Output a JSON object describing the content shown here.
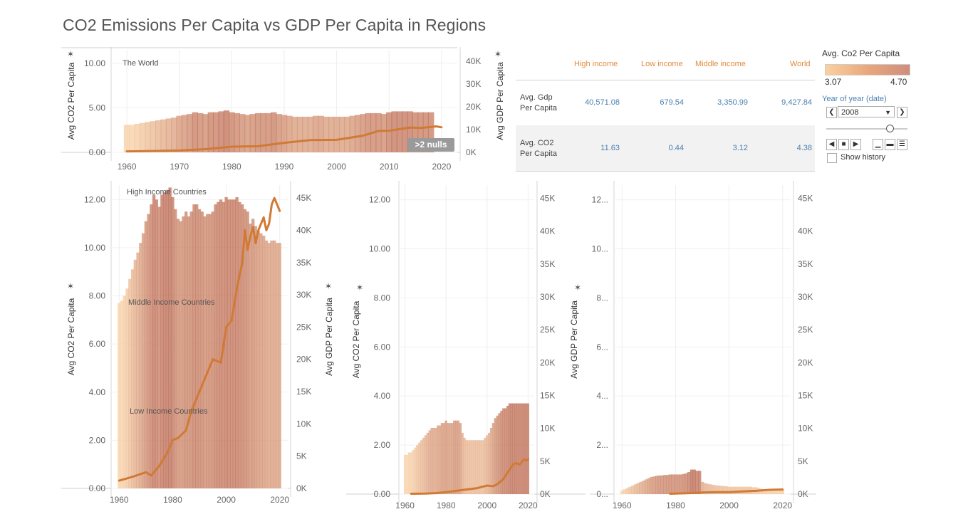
{
  "title": "CO2 Emissions Per Capita vs GDP Per Capita in Regions",
  "chart_data": [
    {
      "type": "bar",
      "region": "The World",
      "annotation": "The World",
      "x": [
        1960,
        1961,
        1962,
        1963,
        1964,
        1965,
        1966,
        1967,
        1968,
        1969,
        1970,
        1971,
        1972,
        1973,
        1974,
        1975,
        1976,
        1977,
        1978,
        1979,
        1980,
        1981,
        1982,
        1983,
        1984,
        1985,
        1986,
        1987,
        1988,
        1989,
        1990,
        1991,
        1992,
        1993,
        1994,
        1995,
        1996,
        1997,
        1998,
        1999,
        2000,
        2001,
        2002,
        2003,
        2004,
        2005,
        2006,
        2007,
        2008,
        2009,
        2010,
        2011,
        2012,
        2013,
        2014,
        2015,
        2016,
        2017,
        2018
      ],
      "series": [
        {
          "name": "Avg CO2 Per Capita",
          "mark": "bar",
          "axis": "left",
          "values": [
            3.1,
            3.1,
            3.2,
            3.3,
            3.4,
            3.5,
            3.6,
            3.7,
            3.8,
            3.9,
            4.1,
            4.2,
            4.3,
            4.5,
            4.4,
            4.3,
            4.5,
            4.5,
            4.6,
            4.7,
            4.5,
            4.4,
            4.3,
            4.2,
            4.3,
            4.4,
            4.4,
            4.4,
            4.5,
            4.3,
            4.2,
            4.1,
            4.0,
            4.0,
            4.0,
            4.0,
            4.1,
            4.1,
            4.0,
            4.0,
            4.0,
            4.0,
            4.0,
            4.1,
            4.2,
            4.3,
            4.4,
            4.4,
            4.4,
            4.3,
            4.5,
            4.6,
            4.6,
            4.6,
            4.6,
            4.5,
            4.5,
            4.5,
            4.5
          ]
        },
        {
          "name": "Avg GDP Per Capita",
          "mark": "line",
          "axis": "right",
          "x": [
            1960,
            1965,
            1970,
            1975,
            1980,
            1985,
            1990,
            1995,
            2000,
            2005,
            2008,
            2010,
            2014,
            2016,
            2019,
            2020
          ],
          "values": [
            450,
            600,
            800,
            1400,
            2500,
            2700,
            4200,
            5400,
            5500,
            7300,
            9400,
            9500,
            10900,
            10700,
            11400,
            11000
          ]
        }
      ],
      "left_ticks": [
        "0.00",
        "5.00",
        "10.00"
      ],
      "left_range": [
        0,
        11.5
      ],
      "right_ticks": [
        "0K",
        "10K",
        "20K",
        "30K",
        "40K"
      ],
      "right_range": [
        0,
        45000
      ],
      "x_ticks": [
        "1960",
        "1970",
        "1980",
        "1990",
        "2000",
        "2010",
        "2020"
      ],
      "ylabel": "Avg CO2 Per Capita",
      "y2label": "Avg GDP Per Capita",
      "null_badge": ">2 nulls"
    },
    {
      "type": "bar",
      "region": "High / Middle / Low income",
      "annotations": [
        "High Income Countries",
        "Middle Income Countries",
        "Low Income Countries"
      ],
      "x": [
        1960,
        1961,
        1962,
        1963,
        1964,
        1965,
        1966,
        1967,
        1968,
        1969,
        1970,
        1971,
        1972,
        1973,
        1974,
        1975,
        1976,
        1977,
        1978,
        1979,
        1980,
        1981,
        1982,
        1983,
        1984,
        1985,
        1986,
        1987,
        1988,
        1989,
        1990,
        1991,
        1992,
        1993,
        1994,
        1995,
        1996,
        1997,
        1998,
        1999,
        2000,
        2001,
        2002,
        2003,
        2004,
        2005,
        2006,
        2007,
        2008,
        2009,
        2010,
        2011,
        2012,
        2013,
        2014,
        2015,
        2016,
        2017,
        2018,
        2019,
        2020
      ],
      "series": [
        {
          "name": "Avg CO2 Per Capita",
          "mark": "bar",
          "axis": "left",
          "values": [
            7.7,
            7.8,
            8.0,
            8.3,
            8.7,
            9.1,
            9.5,
            9.8,
            10.2,
            10.6,
            11.1,
            11.4,
            11.8,
            12.2,
            12.0,
            11.7,
            12.2,
            12.3,
            12.4,
            12.5,
            12.1,
            11.6,
            11.2,
            11.1,
            11.3,
            11.5,
            11.3,
            11.5,
            11.8,
            11.8,
            11.6,
            11.5,
            11.3,
            11.4,
            11.4,
            11.5,
            11.8,
            11.9,
            12.0,
            11.9,
            12.1,
            12.0,
            12.0,
            12.0,
            12.1,
            11.9,
            11.8,
            11.6,
            11.5,
            11.0,
            11.2,
            10.9,
            10.7,
            10.6,
            10.5,
            10.3,
            10.2,
            10.3,
            10.3,
            10.2,
            10.2
          ]
        },
        {
          "name": "Avg GDP Per Capita",
          "mark": "line",
          "axis": "right",
          "x": [
            1960,
            1965,
            1970,
            1972,
            1975,
            1978,
            1980,
            1982,
            1985,
            1987,
            1990,
            1993,
            1995,
            1998,
            2000,
            2002,
            2004,
            2006,
            2007,
            2008,
            2009,
            2010,
            2011,
            2012,
            2013,
            2014,
            2015,
            2016,
            2017,
            2018,
            2019,
            2020
          ],
          "values": [
            1200,
            1800,
            2500,
            2000,
            3500,
            5500,
            7500,
            7800,
            9000,
            12000,
            15000,
            18000,
            20000,
            19500,
            25000,
            26000,
            31000,
            35000,
            40000,
            37000,
            39000,
            40500,
            38000,
            40000,
            41000,
            42000,
            40000,
            41000,
            44000,
            45000,
            44000,
            43000
          ]
        }
      ],
      "left_ticks": [
        "0.00",
        "2.00",
        "4.00",
        "6.00",
        "8.00",
        "10.00",
        "12.00"
      ],
      "left_range": [
        0,
        12.6
      ],
      "right_ticks": [
        "0K",
        "5K",
        "10K",
        "15K",
        "20K",
        "25K",
        "30K",
        "35K",
        "40K",
        "45K"
      ],
      "right_range": [
        0,
        47000
      ],
      "x_ticks": [
        "1960",
        "1980",
        "2000",
        "2020"
      ],
      "ylabel": "Avg CO2 Per Capita",
      "y2label": "Avg GDP Per Capita"
    },
    {
      "type": "bar",
      "region": "Middle income",
      "x": [
        1960,
        1961,
        1962,
        1963,
        1964,
        1965,
        1966,
        1967,
        1968,
        1969,
        1970,
        1971,
        1972,
        1973,
        1974,
        1975,
        1976,
        1977,
        1978,
        1979,
        1980,
        1981,
        1982,
        1983,
        1984,
        1985,
        1986,
        1987,
        1988,
        1989,
        1990,
        1991,
        1992,
        1993,
        1994,
        1995,
        1996,
        1997,
        1998,
        1999,
        2000,
        2001,
        2002,
        2003,
        2004,
        2005,
        2006,
        2007,
        2008,
        2009,
        2010,
        2011,
        2012,
        2013,
        2014,
        2015,
        2016,
        2017,
        2018,
        2019,
        2020
      ],
      "series": [
        {
          "name": "Avg CO2 Per Capita",
          "mark": "bar",
          "axis": "left",
          "values": [
            1.6,
            1.6,
            1.7,
            1.7,
            1.8,
            1.9,
            2.0,
            2.1,
            2.2,
            2.3,
            2.4,
            2.5,
            2.6,
            2.7,
            2.7,
            2.7,
            2.8,
            2.8,
            2.9,
            2.9,
            3.0,
            2.9,
            2.9,
            2.9,
            3.0,
            3.0,
            3.0,
            2.9,
            2.5,
            2.3,
            2.2,
            2.2,
            2.2,
            2.2,
            2.2,
            2.2,
            2.2,
            2.2,
            2.2,
            2.3,
            2.4,
            2.5,
            2.7,
            2.9,
            3.1,
            3.2,
            3.3,
            3.4,
            3.5,
            3.5,
            3.6,
            3.7,
            3.7,
            3.7,
            3.7,
            3.7,
            3.7,
            3.7,
            3.7,
            3.7,
            3.7
          ]
        },
        {
          "name": "Avg GDP Per Capita",
          "mark": "line",
          "axis": "right",
          "x": [
            1963,
            1970,
            1975,
            1980,
            1985,
            1990,
            1995,
            2000,
            2003,
            2005,
            2008,
            2010,
            2013,
            2014,
            2016,
            2018,
            2019,
            2020
          ],
          "values": [
            50,
            80,
            150,
            300,
            500,
            700,
            900,
            1300,
            1200,
            1500,
            2300,
            3300,
            4600,
            4700,
            4500,
            5300,
            5100,
            5300
          ]
        }
      ],
      "left_ticks": [
        "0.00",
        "2.00",
        "4.00",
        "6.00",
        "8.00",
        "10.00",
        "12.00"
      ],
      "left_range": [
        0,
        12.6
      ],
      "right_ticks": [
        "0K",
        "5K",
        "10K",
        "15K",
        "20K",
        "25K",
        "30K",
        "35K",
        "40K",
        "45K"
      ],
      "right_range": [
        0,
        47000
      ],
      "x_ticks": [
        "1960",
        "1980",
        "2000",
        "2020"
      ],
      "ylabel": "Avg CO2 Per Capita",
      "y2label": ""
    },
    {
      "type": "bar",
      "region": "Low income",
      "x": [
        1960,
        1961,
        1962,
        1963,
        1964,
        1965,
        1966,
        1967,
        1968,
        1969,
        1970,
        1971,
        1972,
        1973,
        1974,
        1975,
        1976,
        1977,
        1978,
        1979,
        1980,
        1981,
        1982,
        1983,
        1984,
        1985,
        1986,
        1987,
        1988,
        1989,
        1990,
        1991,
        1992,
        1993,
        1994,
        1995,
        1996,
        1997,
        1998,
        1999,
        2000,
        2001,
        2002,
        2003,
        2004,
        2005,
        2006,
        2007,
        2008,
        2009,
        2010,
        2011,
        2012,
        2013,
        2014,
        2015,
        2016,
        2017,
        2018,
        2019,
        2020
      ],
      "series": [
        {
          "name": "Avg CO2 Per Capita",
          "mark": "bar",
          "axis": "left",
          "values": [
            0.15,
            0.2,
            0.25,
            0.3,
            0.35,
            0.4,
            0.45,
            0.5,
            0.55,
            0.6,
            0.65,
            0.7,
            0.72,
            0.75,
            0.76,
            0.76,
            0.78,
            0.78,
            0.8,
            0.8,
            0.8,
            0.8,
            0.8,
            0.82,
            0.85,
            0.9,
            1.0,
            1.0,
            0.95,
            0.95,
            0.5,
            0.45,
            0.42,
            0.4,
            0.38,
            0.36,
            0.35,
            0.34,
            0.33,
            0.32,
            0.3,
            0.3,
            0.3,
            0.3,
            0.3,
            0.3,
            0.3,
            0.3,
            0.3,
            0.28,
            0.28,
            0.25,
            0.22,
            0.2,
            0.2,
            0.2,
            0.2,
            0.2,
            0.18,
            0.18,
            0.18
          ]
        },
        {
          "name": "Avg GDP Per Capita",
          "mark": "line",
          "axis": "right",
          "x": [
            1978,
            1985,
            1990,
            1995,
            2000,
            2005,
            2010,
            2015,
            2020
          ],
          "values": [
            50,
            150,
            250,
            300,
            300,
            400,
            500,
            650,
            700
          ]
        }
      ],
      "left_ticks": [
        "0...",
        "2...",
        "4...",
        "6...",
        "8...",
        "10...",
        "12..."
      ],
      "left_range": [
        0,
        12.6
      ],
      "right_ticks": [
        "0K",
        "5K",
        "10K",
        "15K",
        "20K",
        "25K",
        "30K",
        "35K",
        "40K",
        "45K"
      ],
      "right_range": [
        0,
        47000
      ],
      "x_ticks": [
        "1960",
        "1980",
        "2000",
        "2020"
      ],
      "ylabel": "",
      "y2label": "Avg GDP Per Capita"
    }
  ],
  "summary_table": {
    "columns": [
      "High income",
      "Low income",
      "Middle income",
      "World"
    ],
    "rows": [
      {
        "label_line1": "Avg. Gdp",
        "label_line2": "Per Capita",
        "values": [
          "40,571.08",
          "679.54",
          "3,350.99",
          "9,427.84"
        ]
      },
      {
        "label_line1": "Avg. CO2",
        "label_line2": "Per Capita",
        "values": [
          "11.63",
          "0.44",
          "3.12",
          "4.38"
        ]
      }
    ]
  },
  "legend": {
    "title": "Avg. Co2 Per Capita",
    "min": "3.07",
    "max": "4.70",
    "colors": [
      "#fbd0a0",
      "#cf8e7d"
    ]
  },
  "controls": {
    "title": "Year of year (date)",
    "selected_year": "2008",
    "show_history_label": "Show history",
    "show_history_checked": false
  },
  "colors": {
    "line": "#d07a35",
    "bar_light": "#fbd3a6",
    "bar_dark": "#b8634a",
    "header": "#e08a3c",
    "value": "#4a7fb0"
  }
}
